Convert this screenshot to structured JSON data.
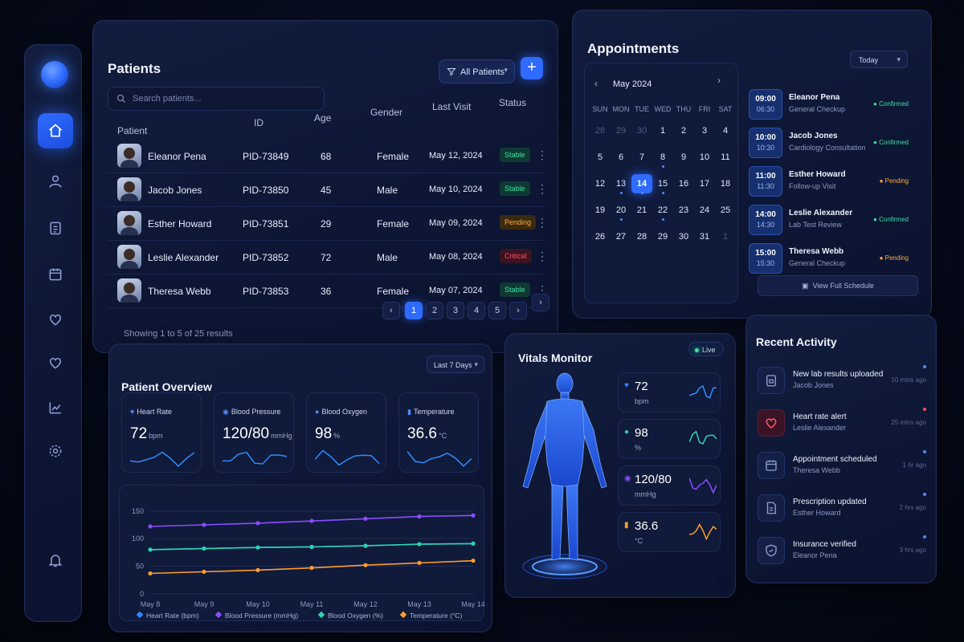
{
  "sidebar": {
    "items": [
      {
        "icon": "home-icon",
        "active": true
      },
      {
        "icon": "user-icon",
        "active": false
      },
      {
        "icon": "clipboard-icon",
        "active": false
      },
      {
        "icon": "calendar-icon",
        "active": false
      },
      {
        "icon": "heart-pulse-icon",
        "active": false
      },
      {
        "icon": "heart-icon",
        "active": false
      },
      {
        "icon": "analytics-icon",
        "active": false
      },
      {
        "icon": "settings-icon",
        "active": false
      }
    ],
    "bottom_icon": "bell-icon"
  },
  "patients": {
    "title": "Patients",
    "filter_label": "All Patients",
    "add_label": "+",
    "search_placeholder": "Search patients...",
    "columns": [
      "Patient",
      "ID",
      "Age",
      "Gender",
      "Last Visit",
      "Status"
    ],
    "rows": [
      {
        "name": "Eleanor Pena",
        "id": "PID-73849",
        "age": "68",
        "gender": "Female",
        "last_visit": "May 12, 2024",
        "status": "Stable",
        "status_kind": "stable"
      },
      {
        "name": "Jacob Jones",
        "id": "PID-73850",
        "age": "45",
        "gender": "Male",
        "last_visit": "May 10, 2024",
        "status": "Stable",
        "status_kind": "stable"
      },
      {
        "name": "Esther Howard",
        "id": "PID-73851",
        "age": "29",
        "gender": "Female",
        "last_visit": "May 09, 2024",
        "status": "Pending",
        "status_kind": "pending"
      },
      {
        "name": "Leslie Alexander",
        "id": "PID-73852",
        "age": "72",
        "gender": "Male",
        "last_visit": "May 08, 2024",
        "status": "Critical",
        "status_kind": "critical"
      },
      {
        "name": "Theresa Webb",
        "id": "PID-73853",
        "age": "36",
        "gender": "Female",
        "last_visit": "May 07, 2024",
        "status": "Stable",
        "status_kind": "stable"
      }
    ],
    "footer": "Showing 1 to 5 of 25 results",
    "pages": [
      "1",
      "2",
      "3",
      "4",
      "5"
    ],
    "prev": "‹",
    "next": "›",
    "last": "›"
  },
  "appointments": {
    "title": "Appointments",
    "range_label": "Today",
    "month": "May 2024",
    "weekdays": [
      "SUN",
      "MON",
      "TUE",
      "WED",
      "THU",
      "FRI",
      "SAT"
    ],
    "days": [
      [
        "28",
        "29",
        "30",
        "1",
        "2",
        "3",
        "4"
      ],
      [
        "5",
        "6",
        "7",
        "8",
        "9",
        "10",
        "11"
      ],
      [
        "12",
        "13",
        "14",
        "15",
        "16",
        "17",
        "18"
      ],
      [
        "19",
        "20",
        "21",
        "22",
        "23",
        "24",
        "25"
      ],
      [
        "26",
        "27",
        "28",
        "29",
        "30",
        "31",
        "1"
      ]
    ],
    "items": [
      {
        "start": "09:00",
        "end": "06:30",
        "name": "Eleanor Pena",
        "type": "General Checkup",
        "status": "Confirmed",
        "kind": "ok"
      },
      {
        "start": "10:00",
        "end": "10:30",
        "name": "Jacob Jones",
        "type": "Cardiology Consultation",
        "status": "Confirmed",
        "kind": "ok"
      },
      {
        "start": "11:00",
        "end": "11:30",
        "name": "Esther Howard",
        "type": "Follow-up Visit",
        "status": "Pending",
        "kind": "pend"
      },
      {
        "start": "14:00",
        "end": "14:30",
        "name": "Leslie Alexander",
        "type": "Lab Test Review",
        "status": "Confirmed",
        "kind": "ok"
      },
      {
        "start": "15:00",
        "end": "15:30",
        "name": "Theresa Webb",
        "type": "General Checkup",
        "status": "Pending",
        "kind": "pend"
      }
    ],
    "view_all": "View Full Schedule"
  },
  "overview": {
    "title": "Patient Overview",
    "range_label": "Last 7 Days",
    "stats": [
      {
        "label": "Heart Rate",
        "value": "72",
        "unit": "bpm",
        "icon": "heart-icon"
      },
      {
        "label": "Blood Pressure",
        "value": "120/80",
        "unit": "mmHg",
        "icon": "pressure-icon"
      },
      {
        "label": "Blood Oxygen",
        "value": "98",
        "unit": "%",
        "icon": "drop-icon"
      },
      {
        "label": "Temperature",
        "value": "36.6",
        "unit": "°C",
        "icon": "thermometer-icon"
      }
    ]
  },
  "chart_data": {
    "type": "line",
    "categories": [
      "May 8",
      "May 9",
      "May 10",
      "May 11",
      "May 12",
      "May 13",
      "May 14"
    ],
    "series": [
      {
        "name": "Heart Rate (bpm)",
        "values": [
          80,
          82,
          84,
          85,
          87,
          90,
          91
        ],
        "color": "#2f8bff"
      },
      {
        "name": "Blood Pressure (mmHg)",
        "values": [
          122,
          125,
          128,
          132,
          136,
          140,
          142
        ],
        "color": "#8a4dff"
      },
      {
        "name": "Blood Oxygen (%)",
        "values": [
          80,
          82,
          84,
          85,
          87,
          90,
          91
        ],
        "color": "#2bd4b0"
      },
      {
        "name": "Temperature (°C)",
        "values": [
          37,
          40,
          43,
          47,
          52,
          56,
          60
        ],
        "color": "#ff9d2e"
      }
    ],
    "ylim": [
      0,
      170
    ],
    "yticks": [
      "0",
      "50",
      "100",
      "150"
    ],
    "grid": true,
    "legend": "bottom"
  },
  "vitals": {
    "title": "Vitals Monitor",
    "live_label": "Live",
    "cards": [
      {
        "value": "72",
        "unit": "bpm",
        "icon": "heart-icon",
        "color": "#2f8bff"
      },
      {
        "value": "98",
        "unit": "%",
        "icon": "drop-icon",
        "color": "#2bd4b0"
      },
      {
        "value": "120/80",
        "unit": "mmHg",
        "icon": "pressure-icon",
        "color": "#8a4dff"
      },
      {
        "value": "36.6",
        "unit": "°C",
        "icon": "thermometer-icon",
        "color": "#ff9d2e"
      }
    ]
  },
  "activity": {
    "title": "Recent Activity",
    "items": [
      {
        "title": "New lab results uploaded",
        "who": "Jacob Jones",
        "when": "10 mins ago",
        "icon": "lab-icon"
      },
      {
        "title": "Heart rate alert",
        "who": "Leslie Alexander",
        "when": "25 mins ago",
        "icon": "heart-alert-icon"
      },
      {
        "title": "Appointment scheduled",
        "who": "Theresa Webb",
        "when": "1 hr ago",
        "icon": "calendar-icon"
      },
      {
        "title": "Prescription updated",
        "who": "Esther Howard",
        "when": "2 hrs ago",
        "icon": "document-icon"
      },
      {
        "title": "Insurance verified",
        "who": "Eleanor Pena",
        "when": "3 hrs ago",
        "icon": "shield-icon"
      }
    ]
  }
}
